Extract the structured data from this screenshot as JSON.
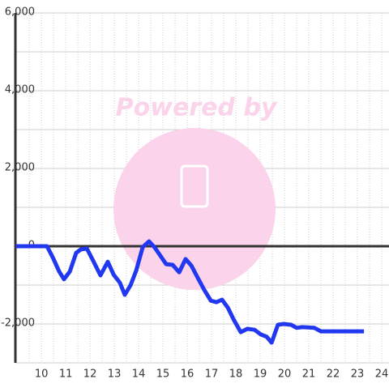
{
  "chart_data": {
    "type": "line",
    "watermark": "Powered by",
    "x": [
      8.95,
      10.23,
      10.47,
      10.73,
      10.93,
      11.17,
      11.43,
      11.63,
      11.87,
      12.13,
      12.43,
      12.73,
      12.97,
      13.23,
      13.43,
      13.67,
      13.9,
      14.17,
      14.43,
      14.67,
      14.9,
      15.13,
      15.4,
      15.67,
      15.93,
      16.17,
      16.43,
      16.7,
      16.97,
      17.2,
      17.43,
      17.67,
      17.9,
      18.2,
      18.47,
      18.77,
      19.03,
      19.27,
      19.47,
      19.73,
      19.97,
      20.27,
      20.5,
      20.73,
      21.23,
      21.5,
      23.27
    ],
    "series": [
      {
        "color": "#2238f0",
        "values": [
          0,
          0,
          -290,
          -650,
          -850,
          -650,
          -170,
          -80,
          -60,
          -375,
          -750,
          -400,
          -730,
          -940,
          -1250,
          -1000,
          -625,
          -20,
          125,
          -40,
          -250,
          -460,
          -480,
          -670,
          -330,
          -500,
          -810,
          -1125,
          -1400,
          -1440,
          -1375,
          -1580,
          -1875,
          -2210,
          -2125,
          -2150,
          -2270,
          -2330,
          -2480,
          -2020,
          -2000,
          -2020,
          -2100,
          -2080,
          -2100,
          -2190,
          -2190
        ]
      }
    ],
    "xlim": [
      8.93,
      24.3
    ],
    "xticks": [
      10,
      11,
      12,
      13,
      14,
      15,
      16,
      17,
      18,
      19,
      20,
      21,
      22,
      23,
      24
    ],
    "x_minor_ticks": [
      9.5,
      10.5,
      11.5,
      12.5,
      13.5,
      14.5,
      15.5,
      16.5,
      17.5,
      18.5,
      19.5,
      20.5,
      21.5,
      22.5,
      23.5
    ],
    "ylim": [
      -3000,
      6000
    ],
    "yticks": [
      {
        "value": -2000,
        "label": "-2,000"
      },
      0,
      {
        "value": 2000,
        "label": "2,000"
      },
      {
        "value": 4000,
        "label": "4,000"
      },
      {
        "value": 6000,
        "label": "6,000"
      }
    ],
    "y_minor_ticks": [
      -3000,
      -1000,
      1000,
      3000,
      5000
    ],
    "grid": true
  }
}
